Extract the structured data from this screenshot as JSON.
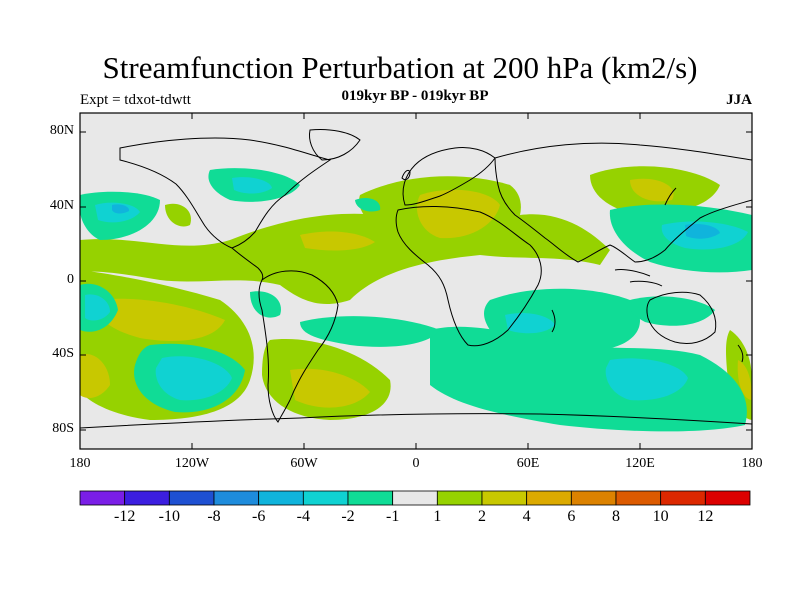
{
  "header": {
    "title": "Streamfunction Perturbation at 200 hPa (km2/s)",
    "subtitle": "019kyr BP - 019kyr BP",
    "expt": "Expt = tdxot-tdwtt",
    "season": "JJA"
  },
  "axes": {
    "lat_ticks": [
      "80N",
      "40N",
      "0",
      "40S",
      "80S"
    ],
    "lon_ticks": [
      "180",
      "120W",
      "60W",
      "0",
      "60E",
      "120E",
      "180"
    ]
  },
  "colorbar": {
    "colors": [
      "#7a1ee6",
      "#3c1ee0",
      "#1e50d2",
      "#1e8cdc",
      "#10b4dc",
      "#10d2d2",
      "#10dc96",
      "#e8e8e8",
      "#96d200",
      "#c8c800",
      "#dcaa00",
      "#dc8200",
      "#dc5a00",
      "#dc2800",
      "#dc0000"
    ],
    "labels": [
      "-12",
      "-10",
      "-8",
      "-6",
      "-4",
      "-2",
      "-1",
      "1",
      "2",
      "4",
      "6",
      "8",
      "10",
      "12"
    ]
  },
  "colors": {
    "background": "#e8e8e8",
    "coast": "#000000"
  }
}
